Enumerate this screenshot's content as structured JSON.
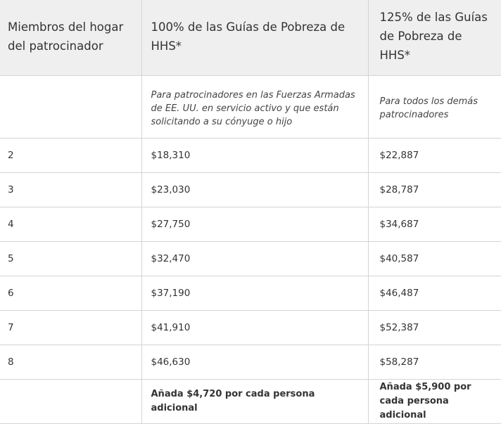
{
  "table": {
    "headers": [
      "Miembros del hogar del patrocinador",
      "100% de las Guías de Pobreza de HHS*",
      "125% de las Guías de Pobreza de HHS*"
    ],
    "notes": [
      "",
      "Para patrocinadores en las Fuerzas Armadas de EE. UU. en servicio activo y que están solicitando a su cónyuge o hijo",
      "Para todos los demás patrocinadores"
    ],
    "rows": [
      {
        "members": "2",
        "pct100": "$18,310",
        "pct125": "$22,887"
      },
      {
        "members": "3",
        "pct100": "$23,030",
        "pct125": "$28,787"
      },
      {
        "members": "4",
        "pct100": "$27,750",
        "pct125": "$34,687"
      },
      {
        "members": "5",
        "pct100": "$32,470",
        "pct125": "$40,587"
      },
      {
        "members": "6",
        "pct100": "$37,190",
        "pct125": "$46,487"
      },
      {
        "members": "7",
        "pct100": "$41,910",
        "pct125": "$52,387"
      },
      {
        "members": "8",
        "pct100": "$46,630",
        "pct125": "$58,287"
      }
    ],
    "footer": [
      "",
      "Añada $4,720 por cada persona adicional",
      "Añada $5,900 por cada persona adicional"
    ]
  }
}
